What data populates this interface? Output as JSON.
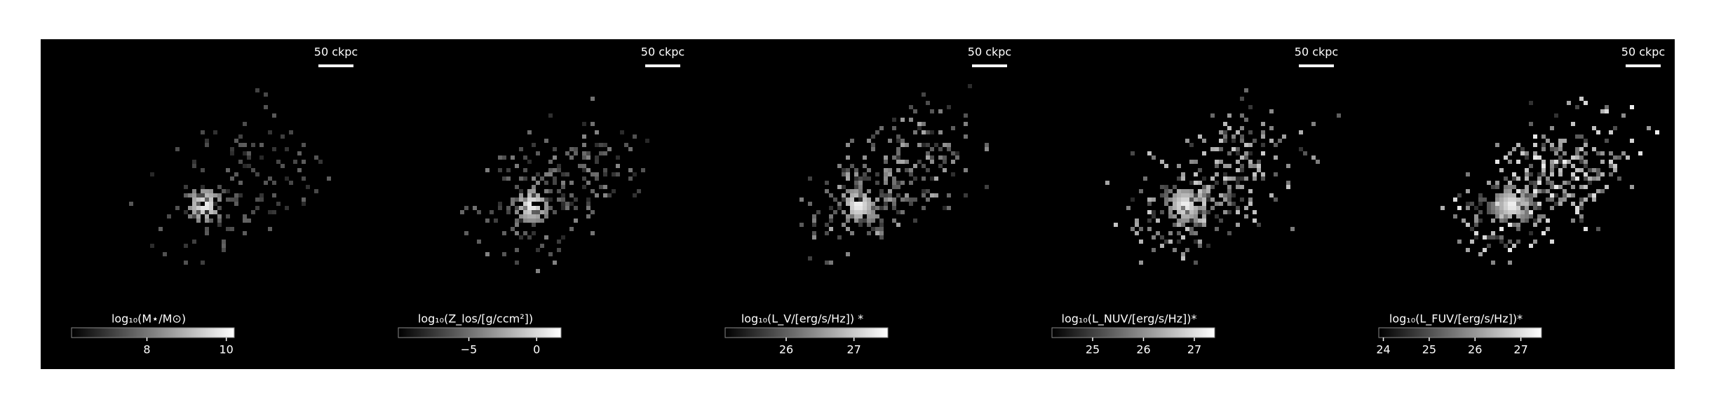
{
  "panels": [
    {
      "scale_label": "50 ckpc",
      "colorbar_label": "log₁₀(M⋆/M⊙)",
      "colorbar_lim": [
        6.1,
        10.2
      ],
      "colorbar_ticks": [
        8,
        10
      ]
    },
    {
      "scale_label": "50 ckpc",
      "colorbar_label": "log₁₀(Z_los/[g/ccm²])",
      "colorbar_lim": [
        -10.2,
        1.8
      ],
      "colorbar_ticks": [
        {
          "value": -5,
          "label": "−5"
        },
        0
      ]
    },
    {
      "scale_label": "50 ckpc",
      "colorbar_label": "log₁₀(L_V/[erg/s/Hz]) *",
      "colorbar_lim": [
        25.1,
        27.5
      ],
      "colorbar_ticks": [
        26,
        27
      ]
    },
    {
      "scale_label": "50 ckpc",
      "colorbar_label": "log₁₀(L_NUV/[erg/s/Hz])*",
      "colorbar_lim": [
        24.2,
        27.4
      ],
      "colorbar_ticks": [
        25,
        26,
        27
      ]
    },
    {
      "scale_label": "50 ckpc",
      "colorbar_label": "log₁₀(L_FUV/[erg/s/Hz])*",
      "colorbar_lim": [
        23.9,
        27.45
      ],
      "colorbar_ticks": [
        24,
        25,
        26,
        27
      ]
    }
  ]
}
